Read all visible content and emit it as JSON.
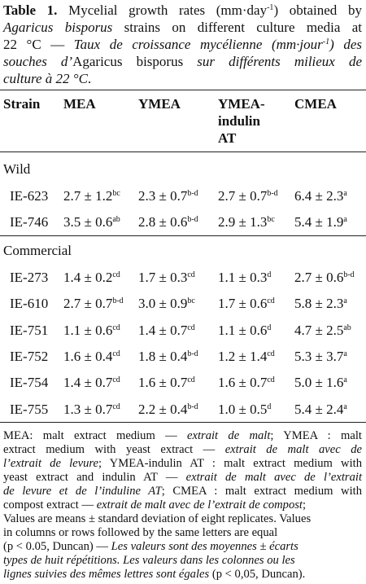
{
  "caption": {
    "lines": [
      [
        {
          "text": "Table 1.",
          "bold": true
        },
        {
          "text": " Mycelial growth rates (mm·day"
        },
        {
          "text": "-1",
          "sup": true
        },
        {
          "text": ") obtained by"
        }
      ],
      [
        {
          "text": "Agaricus bisporus",
          "italic": true
        },
        {
          "text": " strains on different culture media at"
        }
      ],
      [
        {
          "text": "22 °C — "
        },
        {
          "text": "Taux de croissance mycélienne (mm·jour",
          "italic": true
        },
        {
          "text": "-1",
          "italic": true,
          "sup": true
        },
        {
          "text": ") des",
          "italic": true
        }
      ],
      [
        {
          "text": "souches d’",
          "italic": true
        },
        {
          "text": "Agaricus bisporus"
        },
        {
          "text": " sur différents milieux de",
          "italic": true
        }
      ],
      [
        {
          "text": "culture à 22 °C",
          "italic": true
        },
        {
          "text": "."
        }
      ]
    ]
  },
  "table": {
    "header": [
      "Strain",
      "MEA",
      "YMEA",
      [
        "YMEA-",
        "indulin",
        "AT"
      ],
      "CMEA"
    ],
    "groups": [
      {
        "name": "Wild",
        "rows": [
          [
            "IE-623",
            {
              "value": "2.7 ± 1.2",
              "letters": "bc"
            },
            {
              "value": "2.3 ± 0.7",
              "letters": "b-d"
            },
            {
              "value": "2.7 ± 0.7",
              "letters": "b-d"
            },
            {
              "value": "6.4 ± 2.3",
              "letters": "a"
            }
          ],
          [
            "IE-746",
            {
              "value": "3.5 ± 0.6",
              "letters": "ab"
            },
            {
              "value": "2.8 ± 0.6",
              "letters": "b-d"
            },
            {
              "value": "2.9 ± 1.3",
              "letters": "bc"
            },
            {
              "value": "5.4 ± 1.9",
              "letters": "a"
            }
          ]
        ]
      },
      {
        "name": "Commercial",
        "rows": [
          [
            "IE-273",
            {
              "value": "1.4 ± 0.2",
              "letters": "cd"
            },
            {
              "value": "1.7 ± 0.3",
              "letters": "cd"
            },
            {
              "value": "1.1 ± 0.3",
              "letters": "d"
            },
            {
              "value": "2.7 ± 0.6",
              "letters": "b-d"
            }
          ],
          [
            "IE-610",
            {
              "value": "2.7 ± 0.7",
              "letters": "b-d"
            },
            {
              "value": "3.0 ± 0.9",
              "letters": "bc"
            },
            {
              "value": "1.7 ± 0.6",
              "letters": "cd"
            },
            {
              "value": "5.8 ± 2.3",
              "letters": "a"
            }
          ],
          [
            "IE-751",
            {
              "value": "1.1 ± 0.6",
              "letters": "cd"
            },
            {
              "value": "1.4 ± 0.7",
              "letters": "cd"
            },
            {
              "value": "1.1 ± 0.6",
              "letters": "d"
            },
            {
              "value": "4.7 ± 2.5",
              "letters": "ab"
            }
          ],
          [
            "IE-752",
            {
              "value": "1.6 ± 0.4",
              "letters": "cd"
            },
            {
              "value": "1.8 ± 0.4",
              "letters": "b-d"
            },
            {
              "value": "1.2 ± 1.4",
              "letters": "cd"
            },
            {
              "value": "5.3 ± 3.7",
              "letters": "a"
            }
          ],
          [
            "IE-754",
            {
              "value": "1.4 ± 0.7",
              "letters": "cd"
            },
            {
              "value": "1.6 ± 0.7",
              "letters": "cd"
            },
            {
              "value": "1.6 ± 0.7",
              "letters": "cd"
            },
            {
              "value": "5.0 ± 1.6",
              "letters": "a"
            }
          ],
          [
            "IE-755",
            {
              "value": "1.3 ± 0.7",
              "letters": "cd"
            },
            {
              "value": "2.2 ± 0.4",
              "letters": "b-d"
            },
            {
              "value": "1.0 ± 0.5",
              "letters": "d"
            },
            {
              "value": "5.4 ± 2.4",
              "letters": "a"
            }
          ]
        ]
      }
    ]
  },
  "footnote": {
    "lines": [
      [
        {
          "text": "MEA: malt extract medium — "
        },
        {
          "text": "extrait de malt",
          "italic": true
        },
        {
          "text": "; YMEA : malt"
        }
      ],
      [
        {
          "text": "extract medium with yeast extract — "
        },
        {
          "text": "extrait de malt avec de",
          "italic": true
        }
      ],
      [
        {
          "text": "l’extrait de levure",
          "italic": true
        },
        {
          "text": "; YMEA-indulin AT : malt extract medium with"
        }
      ],
      [
        {
          "text": "yeast extract and indulin AT — "
        },
        {
          "text": "extrait de malt avec de l’extrait",
          "italic": true
        }
      ],
      [
        {
          "text": "de levure et de l’induline AT",
          "italic": true
        },
        {
          "text": "; CMEA : malt extract medium with"
        }
      ],
      [
        {
          "text": "compost extract — "
        },
        {
          "text": "extrait de malt avec de l’extrait de compost",
          "italic": true
        },
        {
          "text": ";"
        }
      ],
      [
        {
          "text": "Values are means ± standard deviation of eight replicates. Values"
        }
      ],
      [
        {
          "text": "in columns or rows followed by the same letters are equal"
        }
      ],
      [
        {
          "text": "(p < 0.05, Duncan) — "
        },
        {
          "text": "Les valeurs sont des moyennes ± écarts",
          "italic": true
        }
      ],
      [
        {
          "text": "types de huit répétitions. Les valeurs dans les colonnes ou les",
          "italic": true
        }
      ],
      [
        {
          "text": "lignes suivies des mêmes lettres sont égales",
          "italic": true
        },
        {
          "text": " (p < 0,05, Duncan)."
        }
      ]
    ]
  }
}
